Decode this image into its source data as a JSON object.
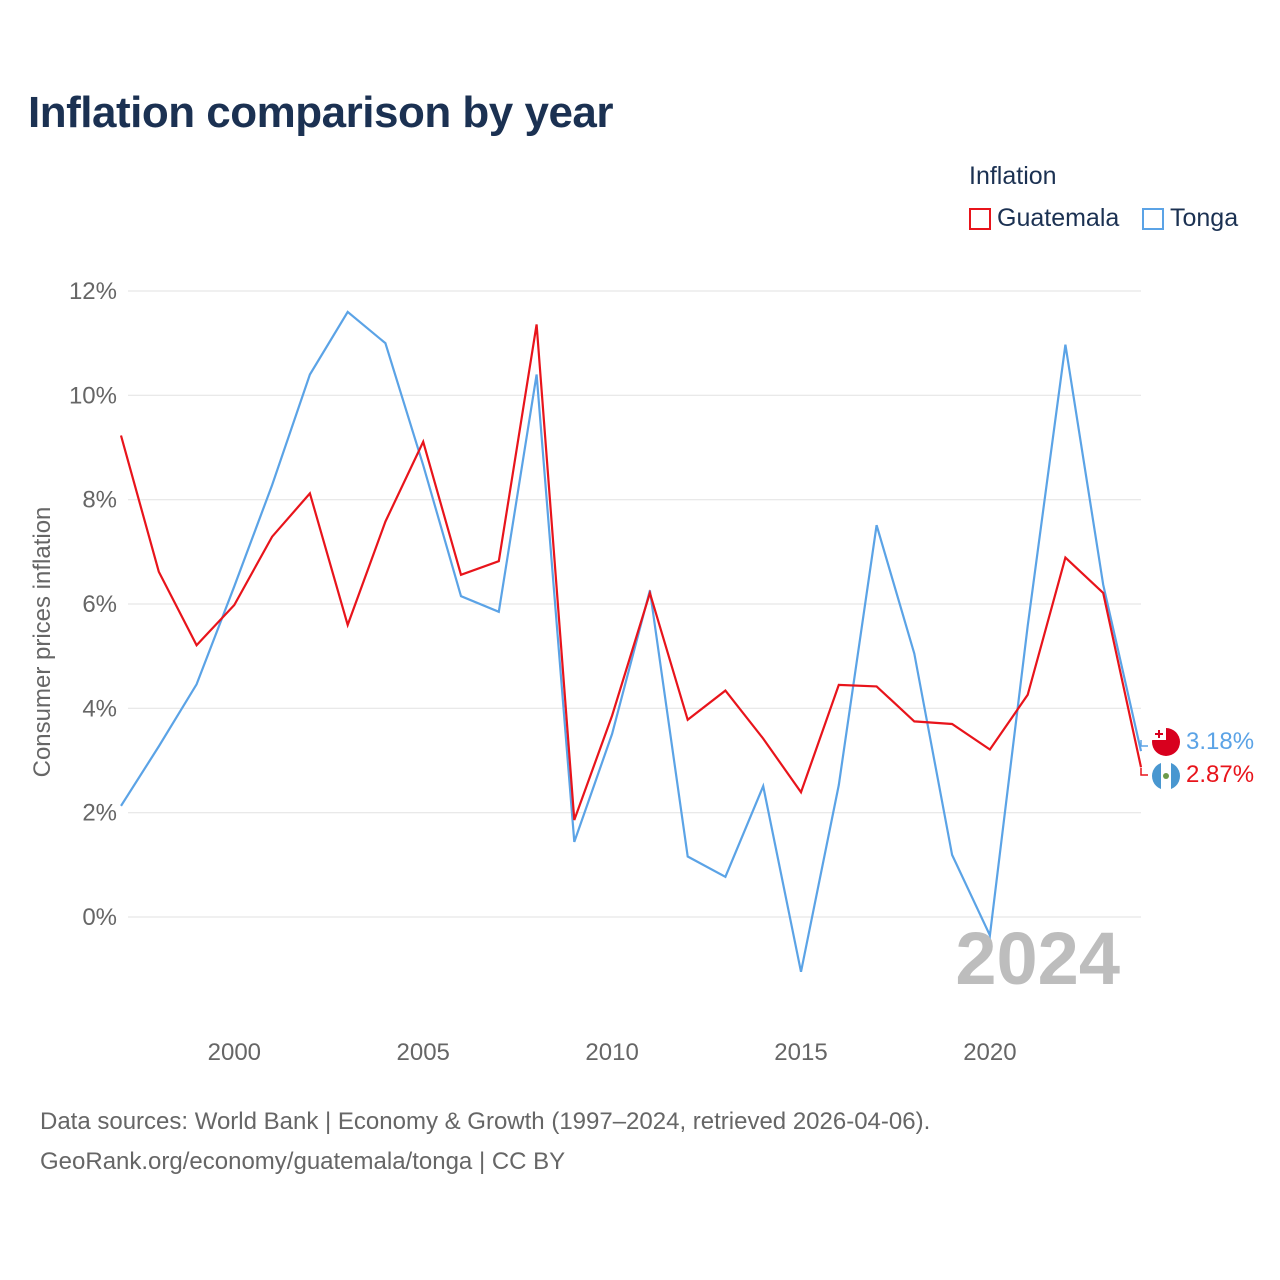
{
  "title": "Inflation comparison by year",
  "legend": {
    "title": "Inflation",
    "items": [
      {
        "name": "Guatemala",
        "color": "#e8141b"
      },
      {
        "name": "Tonga",
        "color": "#5ba3e6"
      }
    ]
  },
  "watermark_year": "2024",
  "end_labels": {
    "tonga": "3.18%",
    "guatemala": "2.87%",
    "tonga_flag_icon": "tonga-flag-icon",
    "guatemala_flag_icon": "guatemala-flag-icon"
  },
  "footer": {
    "line1": "Data sources: World Bank | Economy & Growth (1997–2024, retrieved 2026-04-06).",
    "line2": "GeoRank.org/economy/guatemala/tonga | CC BY"
  },
  "chart_data": {
    "type": "line",
    "title": "Inflation comparison by year",
    "xlabel": "",
    "ylabel": "Consumer prices inflation",
    "x": [
      1997,
      1998,
      1999,
      2000,
      2001,
      2002,
      2003,
      2004,
      2005,
      2006,
      2007,
      2008,
      2009,
      2010,
      2011,
      2012,
      2013,
      2014,
      2015,
      2016,
      2017,
      2018,
      2019,
      2020,
      2021,
      2022,
      2023,
      2024
    ],
    "xlim": [
      1997,
      2024
    ],
    "ylim": [
      -2,
      12
    ],
    "yticks": [
      0,
      2,
      4,
      6,
      8,
      10,
      12
    ],
    "ytick_labels": [
      "0%",
      "2%",
      "4%",
      "6%",
      "8%",
      "10%",
      "12%"
    ],
    "xticks": [
      2000,
      2005,
      2010,
      2015,
      2020
    ],
    "xtick_labels": [
      "2000",
      "2005",
      "2010",
      "2015",
      "2020"
    ],
    "grid": true,
    "legend_position": "top-right",
    "series": [
      {
        "name": "Guatemala",
        "color": "#e8141b",
        "values": [
          9.23,
          6.62,
          5.21,
          5.98,
          7.29,
          8.12,
          5.6,
          7.58,
          9.11,
          6.56,
          6.82,
          11.36,
          1.86,
          3.86,
          6.21,
          3.78,
          4.34,
          3.42,
          2.39,
          4.45,
          4.42,
          3.75,
          3.7,
          3.21,
          4.26,
          6.89,
          6.21,
          2.87
        ]
      },
      {
        "name": "Tonga",
        "color": "#5ba3e6",
        "values": [
          2.13,
          3.27,
          4.46,
          6.34,
          8.28,
          10.4,
          11.6,
          11.0,
          8.66,
          6.15,
          5.85,
          10.4,
          1.44,
          3.51,
          6.26,
          1.16,
          0.77,
          2.51,
          -1.05,
          2.53,
          7.51,
          5.05,
          1.19,
          -0.35,
          5.58,
          10.97,
          6.37,
          3.18
        ]
      }
    ]
  }
}
